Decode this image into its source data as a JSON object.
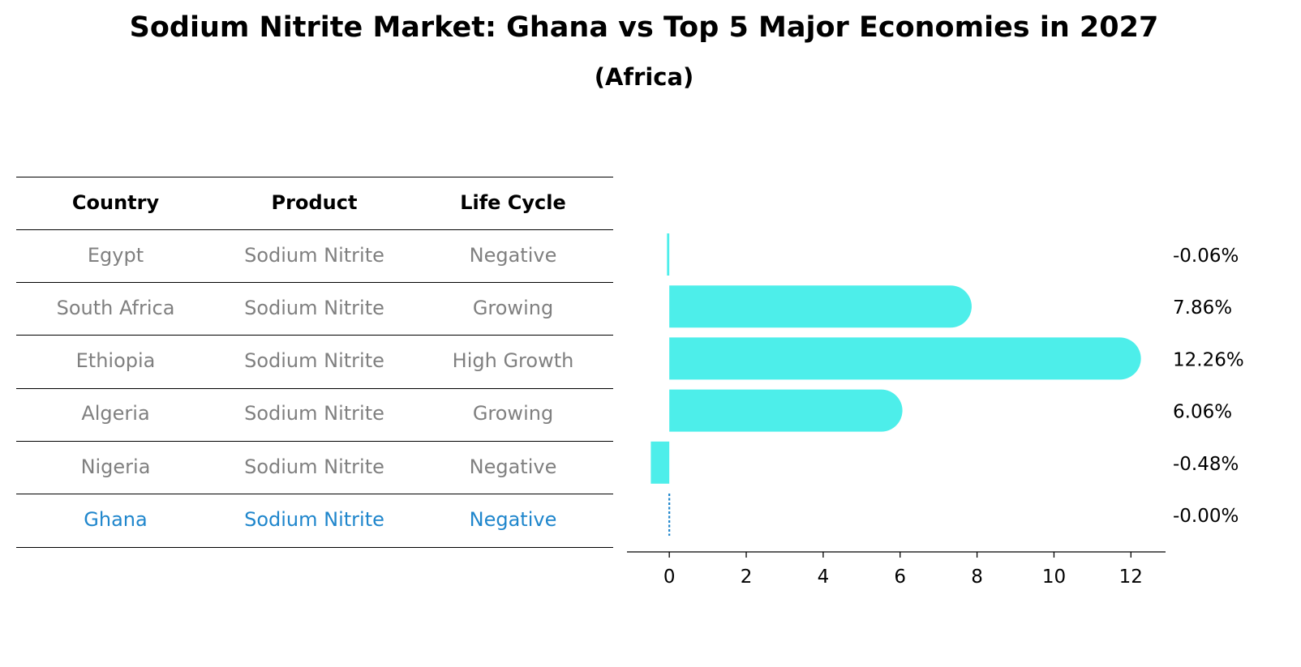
{
  "header": {
    "title": "Sodium Nitrite Market: Ghana vs Top 5 Major Economies in 2027",
    "subtitle": "(Africa)"
  },
  "table": {
    "columns": [
      "Country",
      "Product",
      "Life Cycle"
    ],
    "rows": [
      {
        "country": "Egypt",
        "product": "Sodium Nitrite",
        "life_cycle": "Negative"
      },
      {
        "country": "South Africa",
        "product": "Sodium Nitrite",
        "life_cycle": "Growing"
      },
      {
        "country": "Ethiopia",
        "product": "Sodium Nitrite",
        "life_cycle": "High Growth"
      },
      {
        "country": "Algeria",
        "product": "Sodium Nitrite",
        "life_cycle": "Growing"
      },
      {
        "country": "Nigeria",
        "product": "Sodium Nitrite",
        "life_cycle": "Negative"
      },
      {
        "country": "Ghana",
        "product": "Sodium Nitrite",
        "life_cycle": "Negative"
      }
    ],
    "highlight_country": "Ghana"
  },
  "colors": {
    "bar": "#4deeea",
    "highlight": "#1f86cc",
    "muted_text": "#808080"
  },
  "chart_data": {
    "type": "bar",
    "orientation": "horizontal",
    "categories": [
      "Egypt",
      "South Africa",
      "Ethiopia",
      "Algeria",
      "Nigeria",
      "Ghana"
    ],
    "values": [
      -0.06,
      7.86,
      12.26,
      6.06,
      -0.48,
      -0.0
    ],
    "value_labels": [
      "-0.06%",
      "7.86%",
      "12.26%",
      "6.06%",
      "-0.48%",
      "-0.00%"
    ],
    "xlim": [
      -1.1,
      12.9
    ],
    "xticks": [
      0,
      2,
      4,
      6,
      8,
      10,
      12
    ],
    "xlabel": "",
    "ylabel": "",
    "grid": false
  }
}
